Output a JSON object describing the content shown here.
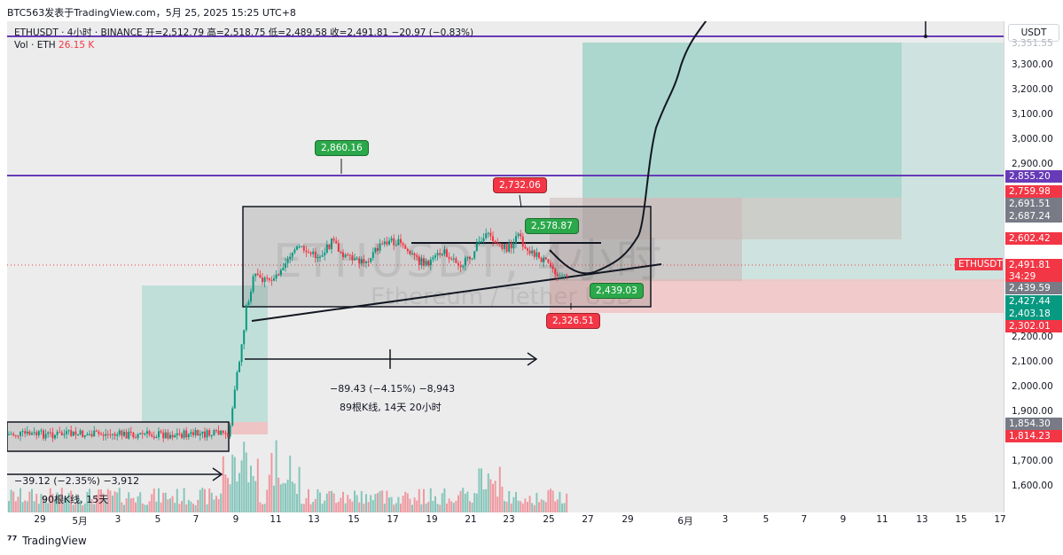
{
  "header": {
    "publisher": "BTC563发表于TradingView.com，5月 25, 2025 15:25 UTC+8"
  },
  "legend": {
    "symbol_line": "ETHUSDT · 4小时 · BINANCE  开=2,512.79  高=2,518.75  低=2,489.58  收=2,491.81  −20.97 (−0.83%)",
    "vol_label": "Vol · ETH",
    "vol_value": "26.15 K"
  },
  "watermark": {
    "symbol": "ETHUSDT, 4小时",
    "description": "Ethereum / Tether USD"
  },
  "price_scale": {
    "unit": "USDT",
    "labels": [
      "3,300.00",
      "3,200.00",
      "3,100.00",
      "3,000.00",
      "2,900.00",
      "2,200.00",
      "2,100.00",
      "2,000.00",
      "1,900.00",
      "1,700.00",
      "1,600.00"
    ],
    "top_hidden_label": "3,351.55",
    "tags": [
      {
        "text": "2,855.20",
        "color": "#673ab7"
      },
      {
        "text": "2,759.98",
        "color": "#f23645"
      },
      {
        "text": "2,691.51",
        "color": "#787b86"
      },
      {
        "text": "2,687.24",
        "color": "#787b86"
      },
      {
        "text": "2,602.42",
        "color": "#f23645"
      },
      {
        "text": "2,491.81",
        "color": "#f23645"
      },
      {
        "text": "34:29",
        "color": "#f23645"
      },
      {
        "text": "2,439.59",
        "color": "#787b86"
      },
      {
        "text": "2,427.44",
        "color": "#089981"
      },
      {
        "text": "2,403.18",
        "color": "#089981"
      },
      {
        "text": "2,302.01",
        "color": "#f23645"
      },
      {
        "text": "1,854.30",
        "color": "#787b86"
      },
      {
        "text": "1,814.23",
        "color": "#f23645"
      }
    ],
    "last_price_symbol": "ETHUSDT"
  },
  "time_axis": {
    "labels": [
      "29",
      "5月",
      "3",
      "5",
      "7",
      "9",
      "11",
      "13",
      "15",
      "17",
      "19",
      "21",
      "23",
      "25",
      "27",
      "29",
      "6月",
      "3",
      "5",
      "7",
      "9",
      "11",
      "13",
      "15",
      "17"
    ]
  },
  "callouts": {
    "high_2860": "2,860.16",
    "high_2732": "2,732.06",
    "price_2578": "2,578.87",
    "price_2439": "2,439.03",
    "low_2326": "2,326.51"
  },
  "measure_1": {
    "line1": "−89.43 (−4.15%) −8,943",
    "line2": "89根K线, 14天 20小时"
  },
  "measure_2": {
    "line1": "−39.12 (−2.35%) −3,912",
    "line2": "90根K线, 15天"
  },
  "footer": {
    "brand": "TradingView"
  },
  "colors": {
    "bull": "#089981",
    "bear": "#f23645",
    "purple": "#673ab7",
    "bg": "#ececec"
  }
}
